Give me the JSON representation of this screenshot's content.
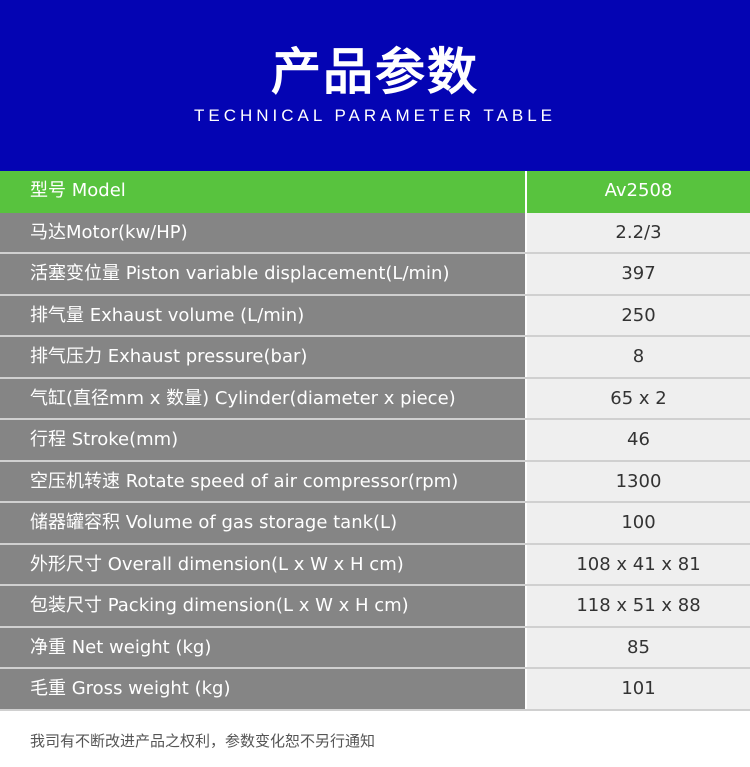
{
  "header": {
    "title": "产品参数",
    "subtitle": "TECHNICAL PARAMETER TABLE"
  },
  "colors": {
    "header_bg": "#0404b3",
    "accent_green": "#58c33e",
    "label_bg": "#858585",
    "value_bg": "#efefef"
  },
  "table": {
    "head": {
      "label": "型号 Model",
      "value": "Av2508"
    },
    "rows": [
      {
        "label": "马达Motor(kw/HP)",
        "value": "2.2/3"
      },
      {
        "label": "活塞变位量 Piston variable displacement(L/min)",
        "value": "397"
      },
      {
        "label": "排气量 Exhaust volume (L/min)",
        "value": "250"
      },
      {
        "label": "排气压力 Exhaust pressure(bar)",
        "value": "8"
      },
      {
        "label": "气缸(直径mm x 数量) Cylinder(diameter x piece)",
        "value": "65 x 2"
      },
      {
        "label": "行程 Stroke(mm)",
        "value": "46"
      },
      {
        "label": "空压机转速 Rotate speed of air compressor(rpm)",
        "value": "1300"
      },
      {
        "label": "储器罐容积 Volume of gas storage tank(L)",
        "value": "100"
      },
      {
        "label": "外形尺寸 Overall dimension(L x W x H cm)",
        "value": "108 x 41 x 81"
      },
      {
        "label": "包装尺寸 Packing dimension(L x W x H cm)",
        "value": "118 x 51 x 88"
      },
      {
        "label": "净重 Net weight (kg)",
        "value": "85"
      },
      {
        "label": "毛重 Gross weight (kg)",
        "value": "101"
      }
    ]
  },
  "footer": {
    "note": "我司有不断改进产品之权利，参数变化恕不另行通知"
  }
}
